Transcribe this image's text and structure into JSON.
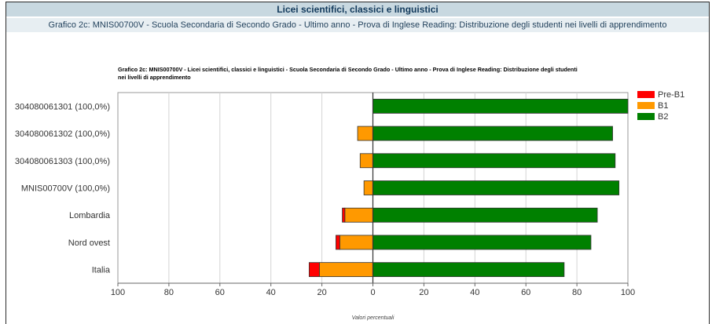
{
  "header": {
    "title": "Licei scientifici, classici e linguistici",
    "subtitle": "Grafico 2c: MNIS00700V - Scuola Secondaria di Secondo Grado - Ultimo anno - Prova di Inglese Reading: Distribuzione degli studenti nei livelli di apprendimento"
  },
  "chart_data": {
    "type": "bar",
    "orientation": "horizontal-diverging",
    "title_lines": [
      "Grafico 2c: MNIS00700V - Licei scientifici, classici e linguistici - Scuola Secondaria di Secondo Grado - Ultimo anno - Prova di Inglese Reading: Distribuzione degli studenti",
      "nei livelli di apprendimento"
    ],
    "xlabel": "Valori percentuali",
    "xlim": [
      -100,
      100
    ],
    "x_ticks": [
      "100",
      "80",
      "60",
      "40",
      "20",
      "0",
      "20",
      "40",
      "60",
      "80",
      "100"
    ],
    "categories": [
      "304080061301 (100,0%)",
      "304080061302 (100,0%)",
      "304080061303 (100,0%)",
      "MNIS00700V (100,0%)",
      "Lombardia",
      "Nord ovest",
      "Italia"
    ],
    "series": [
      {
        "name": "Pre-B1",
        "color": "#ff0000",
        "side": "negative",
        "values": [
          0,
          0,
          0,
          0,
          1.0,
          1.5,
          4.0
        ]
      },
      {
        "name": "B1",
        "color": "#ff9900",
        "side": "negative",
        "values": [
          0,
          6.0,
          5.0,
          3.5,
          11.0,
          13.0,
          21.0
        ]
      },
      {
        "name": "B2",
        "color": "#008000",
        "side": "positive",
        "values": [
          100.0,
          94.0,
          95.0,
          96.5,
          88.0,
          85.5,
          75.0
        ]
      }
    ],
    "legend_position": "right",
    "grid": true
  }
}
